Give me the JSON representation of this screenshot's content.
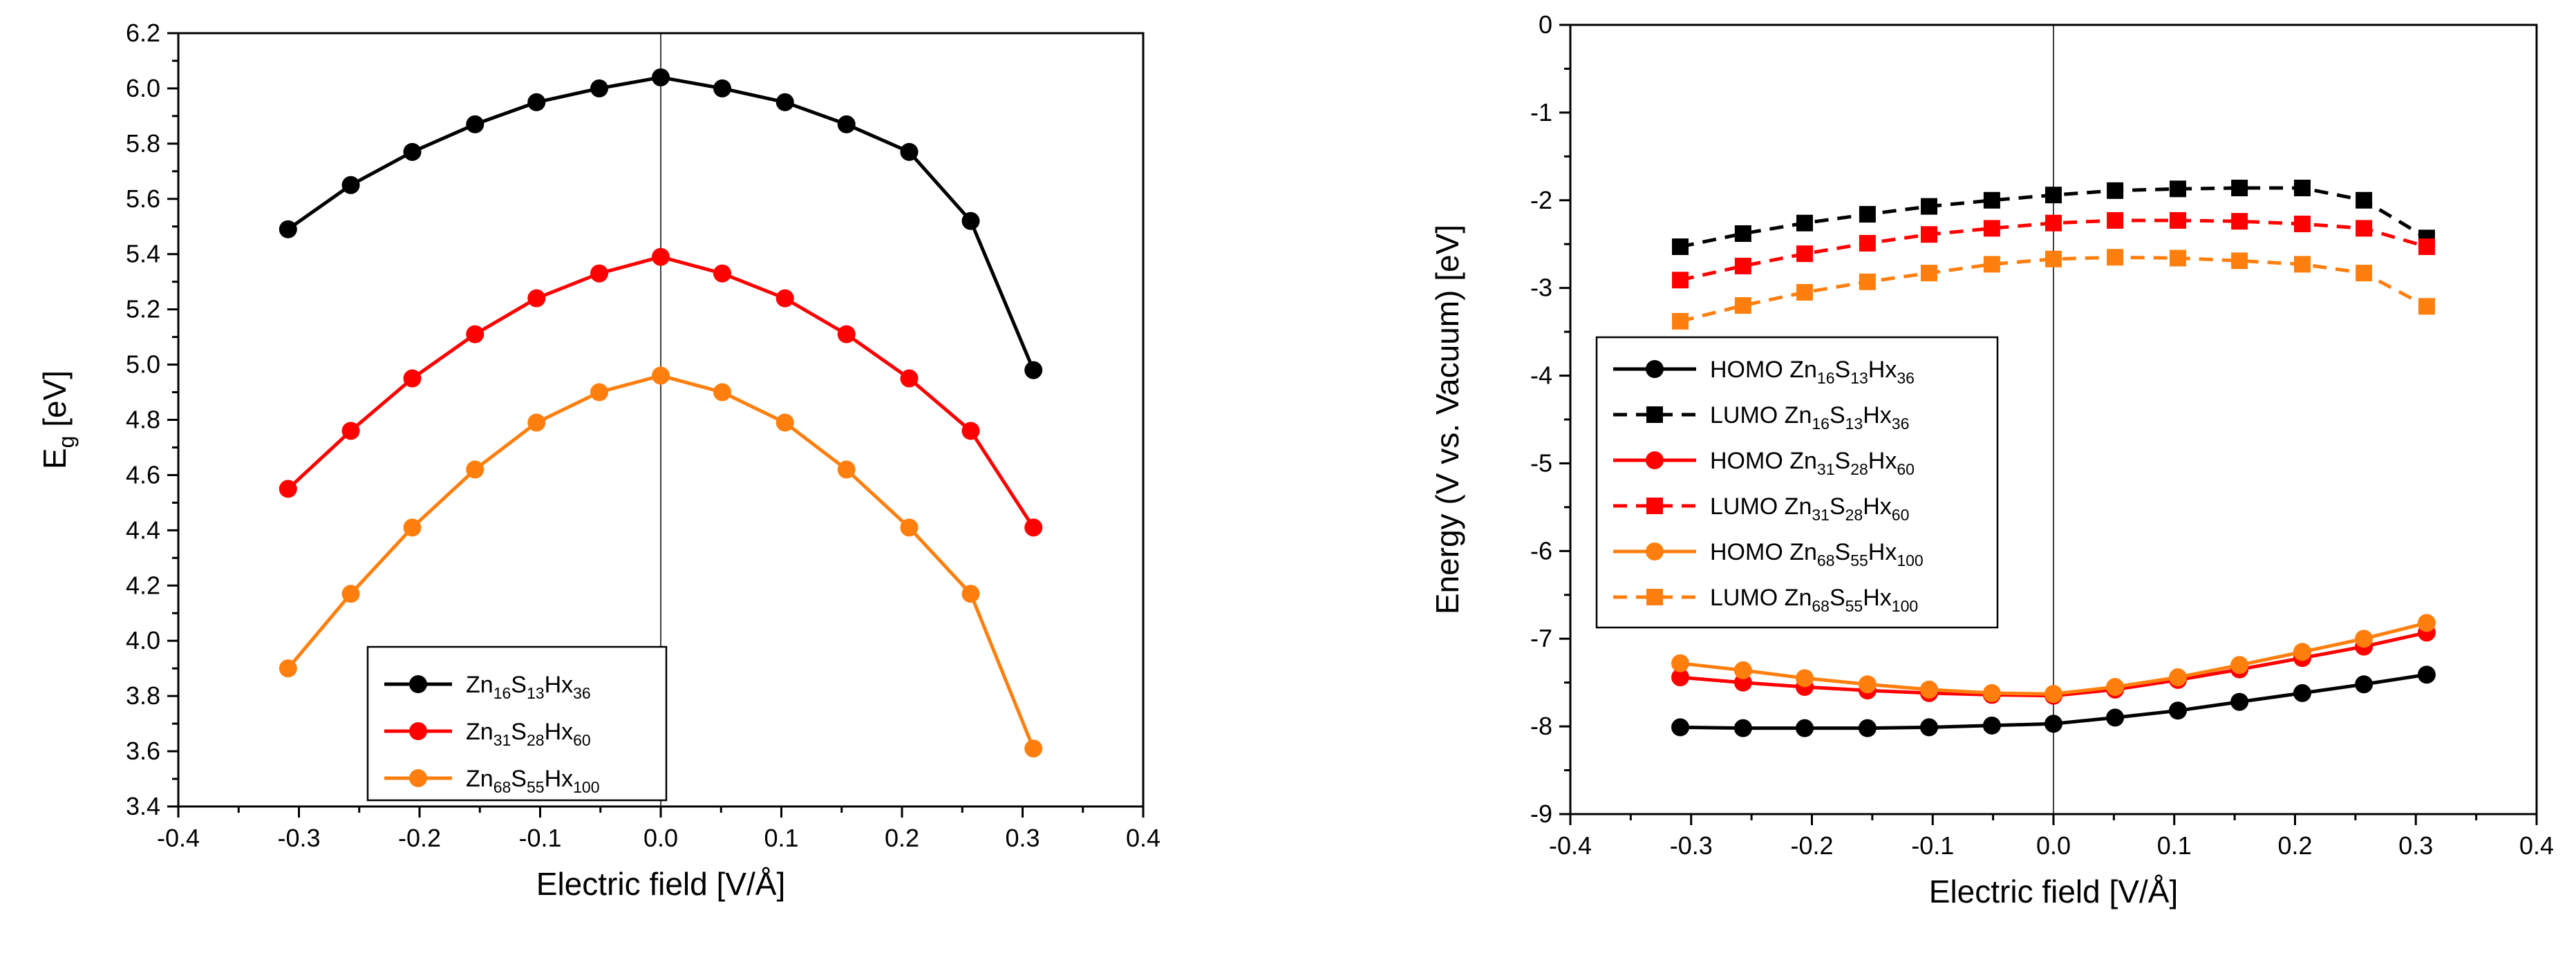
{
  "chart_data": [
    {
      "type": "line",
      "xlabel": "Electric field [V/Å]",
      "ylabel": "E",
      "ylabel_sub": "g",
      "ylabel_unit": " [eV]",
      "xlim": [
        -0.4,
        0.4
      ],
      "ylim": [
        3.4,
        6.2
      ],
      "x_ticks": [
        -0.4,
        -0.3,
        -0.2,
        -0.1,
        0.0,
        0.1,
        0.2,
        0.3,
        0.4
      ],
      "x_tick_labels": [
        "-0.4",
        "-0.3",
        "-0.2",
        "-0.1",
        "0.0",
        "0.1",
        "0.2",
        "0.3",
        "0.4"
      ],
      "y_ticks": [
        3.4,
        3.6,
        3.8,
        4.0,
        4.2,
        4.4,
        4.6,
        4.8,
        5.0,
        5.2,
        5.4,
        5.6,
        5.8,
        6.0,
        6.2
      ],
      "y_tick_labels": [
        "3.4",
        "3.6",
        "3.8",
        "4.0",
        "4.2",
        "4.4",
        "4.6",
        "4.8",
        "5.0",
        "5.2",
        "5.4",
        "5.6",
        "5.8",
        "6.0",
        "6.2"
      ],
      "zero_line": true,
      "legend_position": "bottom-left",
      "x": [
        -0.309,
        -0.257,
        -0.206,
        -0.154,
        -0.103,
        -0.051,
        0.0,
        0.051,
        0.103,
        0.154,
        0.206,
        0.257,
        0.309
      ],
      "series": [
        {
          "name": "Zn16S13Hx36",
          "label_parts": [
            [
              "Zn",
              ""
            ],
            [
              "16",
              "sub"
            ],
            [
              "S",
              ""
            ],
            [
              "13",
              "sub"
            ],
            [
              "Hx",
              ""
            ],
            [
              "36",
              "sub"
            ]
          ],
          "color": "#000000",
          "marker": "circle",
          "dash": "solid",
          "values": [
            5.49,
            5.65,
            5.77,
            5.87,
            5.95,
            6.0,
            6.04,
            6.0,
            5.95,
            5.87,
            5.77,
            5.52,
            4.98
          ]
        },
        {
          "name": "Zn31S28Hx60",
          "label_parts": [
            [
              "Zn",
              ""
            ],
            [
              "31",
              "sub"
            ],
            [
              "S",
              ""
            ],
            [
              "28",
              "sub"
            ],
            [
              "Hx",
              ""
            ],
            [
              "60",
              "sub"
            ]
          ],
          "color": "#ff0000",
          "marker": "circle",
          "dash": "solid",
          "values": [
            4.55,
            4.76,
            4.95,
            5.11,
            5.24,
            5.33,
            5.39,
            5.33,
            5.24,
            5.11,
            4.95,
            4.76,
            4.41
          ]
        },
        {
          "name": "Zn68S55Hx100",
          "label_parts": [
            [
              "Zn",
              ""
            ],
            [
              "68",
              "sub"
            ],
            [
              "S",
              ""
            ],
            [
              "55",
              "sub"
            ],
            [
              "Hx",
              ""
            ],
            [
              "100",
              "sub"
            ]
          ],
          "color": "#ff7f0e",
          "marker": "circle",
          "dash": "solid",
          "values": [
            3.9,
            4.17,
            4.41,
            4.62,
            4.79,
            4.9,
            4.96,
            4.9,
            4.79,
            4.62,
            4.41,
            4.17,
            3.61
          ]
        }
      ]
    },
    {
      "type": "line",
      "xlabel": "Electric field [V/Å]",
      "ylabel": "Energy (V vs. Vacuum) [eV]",
      "ylabel_sub": "",
      "ylabel_unit": "",
      "xlim": [
        -0.4,
        0.4
      ],
      "ylim": [
        -9,
        0
      ],
      "x_ticks": [
        -0.4,
        -0.3,
        -0.2,
        -0.1,
        0.0,
        0.1,
        0.2,
        0.3,
        0.4
      ],
      "x_tick_labels": [
        "-0.4",
        "-0.3",
        "-0.2",
        "-0.1",
        "0.0",
        "0.1",
        "0.2",
        "0.3",
        "0.4"
      ],
      "y_ticks": [
        -9,
        -8,
        -7,
        -6,
        -5,
        -4,
        -3,
        -2,
        -1,
        0
      ],
      "y_tick_labels": [
        "-9",
        "-8",
        "-7",
        "-6",
        "-5",
        "-4",
        "-3",
        "-2",
        "-1",
        "0"
      ],
      "zero_line": true,
      "legend_position": "middle-left",
      "x": [
        -0.309,
        -0.257,
        -0.206,
        -0.154,
        -0.103,
        -0.051,
        0.0,
        0.051,
        0.103,
        0.154,
        0.206,
        0.257,
        0.309
      ],
      "series": [
        {
          "name": "HOMO Zn16S13Hx36",
          "label_parts": [
            [
              "HOMO Zn",
              ""
            ],
            [
              "16",
              "sub"
            ],
            [
              "S",
              ""
            ],
            [
              "13",
              "sub"
            ],
            [
              "Hx",
              ""
            ],
            [
              "36",
              "sub"
            ]
          ],
          "color": "#000000",
          "marker": "circle",
          "dash": "solid",
          "values": [
            -8.01,
            -8.02,
            -8.02,
            -8.02,
            -8.01,
            -7.99,
            -7.97,
            -7.9,
            -7.82,
            -7.72,
            -7.62,
            -7.52,
            -7.41
          ]
        },
        {
          "name": "LUMO Zn16S13Hx36",
          "label_parts": [
            [
              "LUMO Zn",
              ""
            ],
            [
              "16",
              "sub"
            ],
            [
              "S",
              ""
            ],
            [
              "13",
              "sub"
            ],
            [
              "Hx",
              ""
            ],
            [
              "36",
              "sub"
            ]
          ],
          "color": "#000000",
          "marker": "square",
          "dash": "dashed",
          "values": [
            -2.53,
            -2.38,
            -2.26,
            -2.16,
            -2.07,
            -2.0,
            -1.94,
            -1.89,
            -1.87,
            -1.86,
            -1.86,
            -2.0,
            -2.43
          ]
        },
        {
          "name": "HOMO Zn31S28Hx60",
          "label_parts": [
            [
              "HOMO Zn",
              ""
            ],
            [
              "31",
              "sub"
            ],
            [
              "S",
              ""
            ],
            [
              "28",
              "sub"
            ],
            [
              "Hx",
              ""
            ],
            [
              "60",
              "sub"
            ]
          ],
          "color": "#ff0000",
          "marker": "circle",
          "dash": "solid",
          "values": [
            -7.44,
            -7.5,
            -7.55,
            -7.59,
            -7.62,
            -7.64,
            -7.65,
            -7.58,
            -7.47,
            -7.35,
            -7.22,
            -7.09,
            -6.93
          ]
        },
        {
          "name": "LUMO Zn31S28Hx60",
          "label_parts": [
            [
              "LUMO Zn",
              ""
            ],
            [
              "31",
              "sub"
            ],
            [
              "S",
              ""
            ],
            [
              "28",
              "sub"
            ],
            [
              "Hx",
              ""
            ],
            [
              "60",
              "sub"
            ]
          ],
          "color": "#ff0000",
          "marker": "square",
          "dash": "dashed",
          "values": [
            -2.91,
            -2.75,
            -2.61,
            -2.49,
            -2.39,
            -2.32,
            -2.26,
            -2.23,
            -2.23,
            -2.24,
            -2.27,
            -2.32,
            -2.53
          ]
        },
        {
          "name": "HOMO Zn68S55Hx100",
          "label_parts": [
            [
              "HOMO Zn",
              ""
            ],
            [
              "68",
              "sub"
            ],
            [
              "S",
              ""
            ],
            [
              "55",
              "sub"
            ],
            [
              "Hx",
              ""
            ],
            [
              "100",
              "sub"
            ]
          ],
          "color": "#ff7f0e",
          "marker": "circle",
          "dash": "solid",
          "values": [
            -7.28,
            -7.36,
            -7.45,
            -7.52,
            -7.58,
            -7.62,
            -7.63,
            -7.55,
            -7.44,
            -7.3,
            -7.15,
            -7.0,
            -6.82
          ]
        },
        {
          "name": "LUMO Zn68S55Hx100",
          "label_parts": [
            [
              "LUMO Zn",
              ""
            ],
            [
              "68",
              "sub"
            ],
            [
              "S",
              ""
            ],
            [
              "55",
              "sub"
            ],
            [
              "Hx",
              ""
            ],
            [
              "100",
              "sub"
            ]
          ],
          "color": "#ff7f0e",
          "marker": "square",
          "dash": "dashed",
          "values": [
            -3.38,
            -3.2,
            -3.05,
            -2.93,
            -2.83,
            -2.73,
            -2.67,
            -2.65,
            -2.66,
            -2.69,
            -2.73,
            -2.83,
            -3.21
          ]
        }
      ]
    }
  ]
}
